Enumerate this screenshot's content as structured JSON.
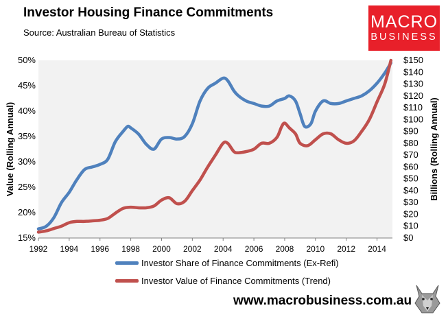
{
  "header": {
    "title": "Investor Housing Finance Commitments",
    "source": "Source: Australian Bureau of Statistics"
  },
  "logo": {
    "line1": "MACRO",
    "line2": "BUSINESS",
    "color": "#e8202a"
  },
  "footer": {
    "url": "www.macrobusiness.com.au"
  },
  "chart_data": {
    "type": "line",
    "title": "Investor Housing Finance Commitments",
    "xlabel": "",
    "ylabel": "Value (Rolling Annual)",
    "y2label": "Billions (Rolling Annual)",
    "xlim": [
      1992,
      2015
    ],
    "ylim": [
      15,
      50
    ],
    "y2lim": [
      0,
      150
    ],
    "x_ticks": [
      "1992",
      "1994",
      "1996",
      "1998",
      "2000",
      "2002",
      "2004",
      "2006",
      "2008",
      "2010",
      "2012",
      "2014"
    ],
    "y_ticks": [
      "15%",
      "20%",
      "25%",
      "30%",
      "35%",
      "40%",
      "45%",
      "50%"
    ],
    "y2_ticks": [
      "$0",
      "$10",
      "$20",
      "$30",
      "$40",
      "$50",
      "$60",
      "$70",
      "$80",
      "$90",
      "$100",
      "$110",
      "$120",
      "$130",
      "$140",
      "$150"
    ],
    "plot_background": "#f2f2f2",
    "series": [
      {
        "name": "Investor Share of Finance Commitments (Ex-Refi)",
        "axis": "left",
        "color": "#4f81bd",
        "x": [
          1992.0,
          1992.5,
          1993.0,
          1993.5,
          1994.0,
          1994.5,
          1995.0,
          1995.5,
          1996.0,
          1996.5,
          1997.0,
          1997.5,
          1997.8,
          1998.0,
          1998.5,
          1999.0,
          1999.5,
          2000.0,
          2000.5,
          2001.0,
          2001.5,
          2002.0,
          2002.5,
          2003.0,
          2003.5,
          2004.0,
          2004.3,
          2004.7,
          2005.0,
          2005.5,
          2006.0,
          2006.5,
          2007.0,
          2007.5,
          2008.0,
          2008.3,
          2008.7,
          2009.0,
          2009.3,
          2009.7,
          2010.0,
          2010.5,
          2011.0,
          2011.5,
          2012.0,
          2012.5,
          2013.0,
          2013.5,
          2014.0,
          2014.5,
          2014.9
        ],
        "values": [
          16.8,
          17.3,
          19.0,
          22.0,
          24.0,
          26.5,
          28.5,
          29.0,
          29.5,
          30.5,
          34.0,
          36.0,
          37.0,
          36.7,
          35.5,
          33.5,
          32.5,
          34.5,
          34.8,
          34.5,
          35.0,
          37.5,
          42.0,
          44.5,
          45.5,
          46.5,
          46.0,
          44.0,
          43.0,
          42.0,
          41.5,
          41.0,
          41.0,
          42.0,
          42.5,
          43.0,
          42.0,
          39.5,
          37.0,
          37.5,
          40.0,
          42.0,
          41.5,
          41.5,
          42.0,
          42.5,
          43.0,
          44.0,
          45.5,
          47.5,
          49.5
        ]
      },
      {
        "name": "Investor Value of Finance Commitments (Trend)",
        "axis": "right",
        "color": "#c0504d",
        "x": [
          1992.0,
          1992.5,
          1993.0,
          1993.5,
          1994.0,
          1994.5,
          1995.0,
          1995.5,
          1996.0,
          1996.5,
          1997.0,
          1997.5,
          1998.0,
          1998.5,
          1999.0,
          1999.5,
          2000.0,
          2000.5,
          2001.0,
          2001.5,
          2002.0,
          2002.5,
          2003.0,
          2003.5,
          2004.0,
          2004.3,
          2004.7,
          2005.0,
          2005.5,
          2006.0,
          2006.5,
          2007.0,
          2007.5,
          2007.8,
          2008.0,
          2008.3,
          2008.7,
          2009.0,
          2009.5,
          2010.0,
          2010.5,
          2011.0,
          2011.5,
          2012.0,
          2012.5,
          2013.0,
          2013.5,
          2014.0,
          2014.5,
          2014.9
        ],
        "values": [
          5,
          6,
          8,
          10,
          13,
          14,
          14,
          14.5,
          15,
          16.5,
          21,
          25,
          26,
          25.5,
          25.5,
          27,
          32,
          34,
          29,
          31,
          40,
          49,
          60,
          70,
          80,
          80,
          73,
          72,
          73,
          75,
          80,
          80,
          85,
          94,
          97,
          93,
          88,
          80,
          78,
          83,
          88,
          88,
          83,
          80,
          82,
          90,
          100,
          115,
          130,
          150
        ]
      }
    ]
  }
}
